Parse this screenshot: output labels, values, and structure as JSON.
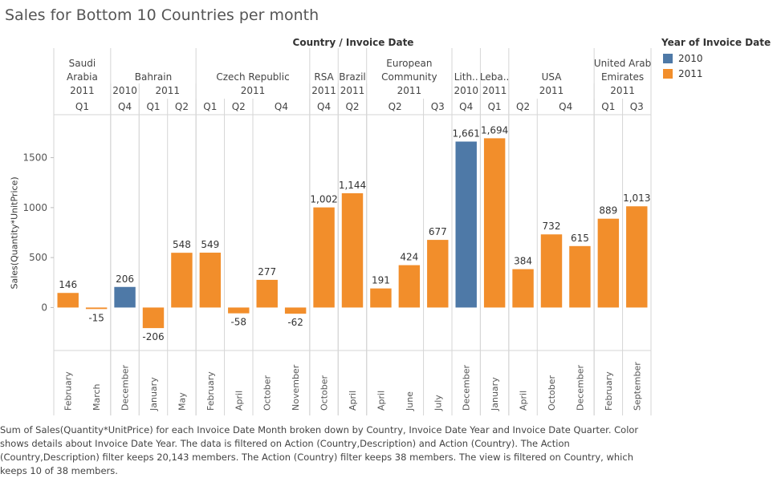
{
  "title": "Sales for Bottom 10 Countries per month",
  "header_title": "Country / Invoice Date",
  "legend": {
    "title": "Year of Invoice Date",
    "items": [
      {
        "label": "2010",
        "color": "#4e79a7"
      },
      {
        "label": "2011",
        "color": "#f28e2b"
      }
    ]
  },
  "caption": "Sum of Sales(Quantity*UnitPrice) for each Invoice Date Month broken down by Country, Invoice Date Year and Invoice Date Quarter.  Color shows details about Invoice Date Year. The data is filtered on Action (Country,Description) and Action (Country). The Action (Country,Description) filter keeps 20,143 members. The Action (Country) filter keeps 38 members. The view is filtered on Country, which keeps 10 of 38 members.",
  "chart_data": {
    "type": "bar",
    "ylabel": "Sales(Quantity*UnitPrice)",
    "ylim": [
      -430,
      1930
    ],
    "yticks": [
      0,
      500,
      1000,
      1500
    ],
    "countries": [
      {
        "name": [
          "Saudi",
          "Arabia"
        ],
        "years": [
          {
            "year": "2011",
            "quarters": [
              {
                "q": "Q1",
                "months": [
                  "February",
                  "March"
                ]
              }
            ]
          }
        ]
      },
      {
        "name": [
          "Bahrain"
        ],
        "years": [
          {
            "year": "2010",
            "quarters": [
              {
                "q": "Q4",
                "months": [
                  "December"
                ]
              }
            ]
          },
          {
            "year": "2011",
            "quarters": [
              {
                "q": "Q1",
                "months": [
                  "January"
                ]
              },
              {
                "q": "Q2",
                "months": [
                  "May"
                ]
              }
            ]
          }
        ]
      },
      {
        "name": [
          "Czech Republic"
        ],
        "years": [
          {
            "year": "2011",
            "quarters": [
              {
                "q": "Q1",
                "months": [
                  "February"
                ]
              },
              {
                "q": "Q2",
                "months": [
                  "April"
                ]
              },
              {
                "q": "Q4",
                "months": [
                  "October",
                  "November"
                ]
              }
            ]
          }
        ]
      },
      {
        "name": [
          "RSA"
        ],
        "years": [
          {
            "year": "2011",
            "quarters": [
              {
                "q": "Q4",
                "months": [
                  "October"
                ]
              }
            ]
          }
        ]
      },
      {
        "name": [
          "Brazil"
        ],
        "years": [
          {
            "year": "2011",
            "quarters": [
              {
                "q": "Q2",
                "months": [
                  "April"
                ]
              }
            ]
          }
        ]
      },
      {
        "name": [
          "European",
          "Community"
        ],
        "years": [
          {
            "year": "2011",
            "quarters": [
              {
                "q": "Q2",
                "months": [
                  "April",
                  "June"
                ]
              },
              {
                "q": "Q3",
                "months": [
                  "July"
                ]
              }
            ]
          }
        ]
      },
      {
        "name": [
          "Lith.."
        ],
        "years": [
          {
            "year": "2010",
            "quarters": [
              {
                "q": "Q4",
                "months": [
                  "December"
                ]
              }
            ]
          }
        ]
      },
      {
        "name": [
          "Leba.."
        ],
        "years": [
          {
            "year": "2011",
            "quarters": [
              {
                "q": "Q1",
                "months": [
                  "January"
                ]
              }
            ]
          }
        ]
      },
      {
        "name": [
          "USA"
        ],
        "years": [
          {
            "year": "2011",
            "quarters": [
              {
                "q": "Q2",
                "months": [
                  "April"
                ]
              },
              {
                "q": "Q4",
                "months": [
                  "October",
                  "December"
                ]
              }
            ]
          }
        ]
      },
      {
        "name": [
          "United Arab",
          "Emirates"
        ],
        "years": [
          {
            "year": "2011",
            "quarters": [
              {
                "q": "Q1",
                "months": [
                  "February"
                ]
              },
              {
                "q": "Q3",
                "months": [
                  "September"
                ]
              }
            ]
          }
        ]
      }
    ],
    "bars": [
      {
        "country": "Saudi Arabia",
        "year": "2011",
        "month": "February",
        "value": 146,
        "label": "146"
      },
      {
        "country": "Saudi Arabia",
        "year": "2011",
        "month": "March",
        "value": -15,
        "label": "-15"
      },
      {
        "country": "Bahrain",
        "year": "2010",
        "month": "December",
        "value": 206,
        "label": "206"
      },
      {
        "country": "Bahrain",
        "year": "2011",
        "month": "January",
        "value": -206,
        "label": "-206"
      },
      {
        "country": "Bahrain",
        "year": "2011",
        "month": "May",
        "value": 548,
        "label": "548"
      },
      {
        "country": "Czech Republic",
        "year": "2011",
        "month": "February",
        "value": 549,
        "label": "549"
      },
      {
        "country": "Czech Republic",
        "year": "2011",
        "month": "April",
        "value": -58,
        "label": "-58"
      },
      {
        "country": "Czech Republic",
        "year": "2011",
        "month": "October",
        "value": 277,
        "label": "277"
      },
      {
        "country": "Czech Republic",
        "year": "2011",
        "month": "November",
        "value": -62,
        "label": "-62"
      },
      {
        "country": "RSA",
        "year": "2011",
        "month": "October",
        "value": 1002,
        "label": "1,002"
      },
      {
        "country": "Brazil",
        "year": "2011",
        "month": "April",
        "value": 1144,
        "label": "1,144"
      },
      {
        "country": "European Community",
        "year": "2011",
        "month": "April",
        "value": 191,
        "label": "191"
      },
      {
        "country": "European Community",
        "year": "2011",
        "month": "June",
        "value": 424,
        "label": "424"
      },
      {
        "country": "European Community",
        "year": "2011",
        "month": "July",
        "value": 677,
        "label": "677"
      },
      {
        "country": "Lithuania",
        "year": "2010",
        "month": "December",
        "value": 1661,
        "label": "1,661"
      },
      {
        "country": "Lebanon",
        "year": "2011",
        "month": "January",
        "value": 1694,
        "label": "1,694"
      },
      {
        "country": "USA",
        "year": "2011",
        "month": "April",
        "value": 384,
        "label": "384"
      },
      {
        "country": "USA",
        "year": "2011",
        "month": "October",
        "value": 732,
        "label": "732"
      },
      {
        "country": "USA",
        "year": "2011",
        "month": "December",
        "value": 615,
        "label": "615"
      },
      {
        "country": "United Arab Emirates",
        "year": "2011",
        "month": "February",
        "value": 889,
        "label": "889"
      },
      {
        "country": "United Arab Emirates",
        "year": "2011",
        "month": "September",
        "value": 1013,
        "label": "1,013"
      }
    ]
  }
}
